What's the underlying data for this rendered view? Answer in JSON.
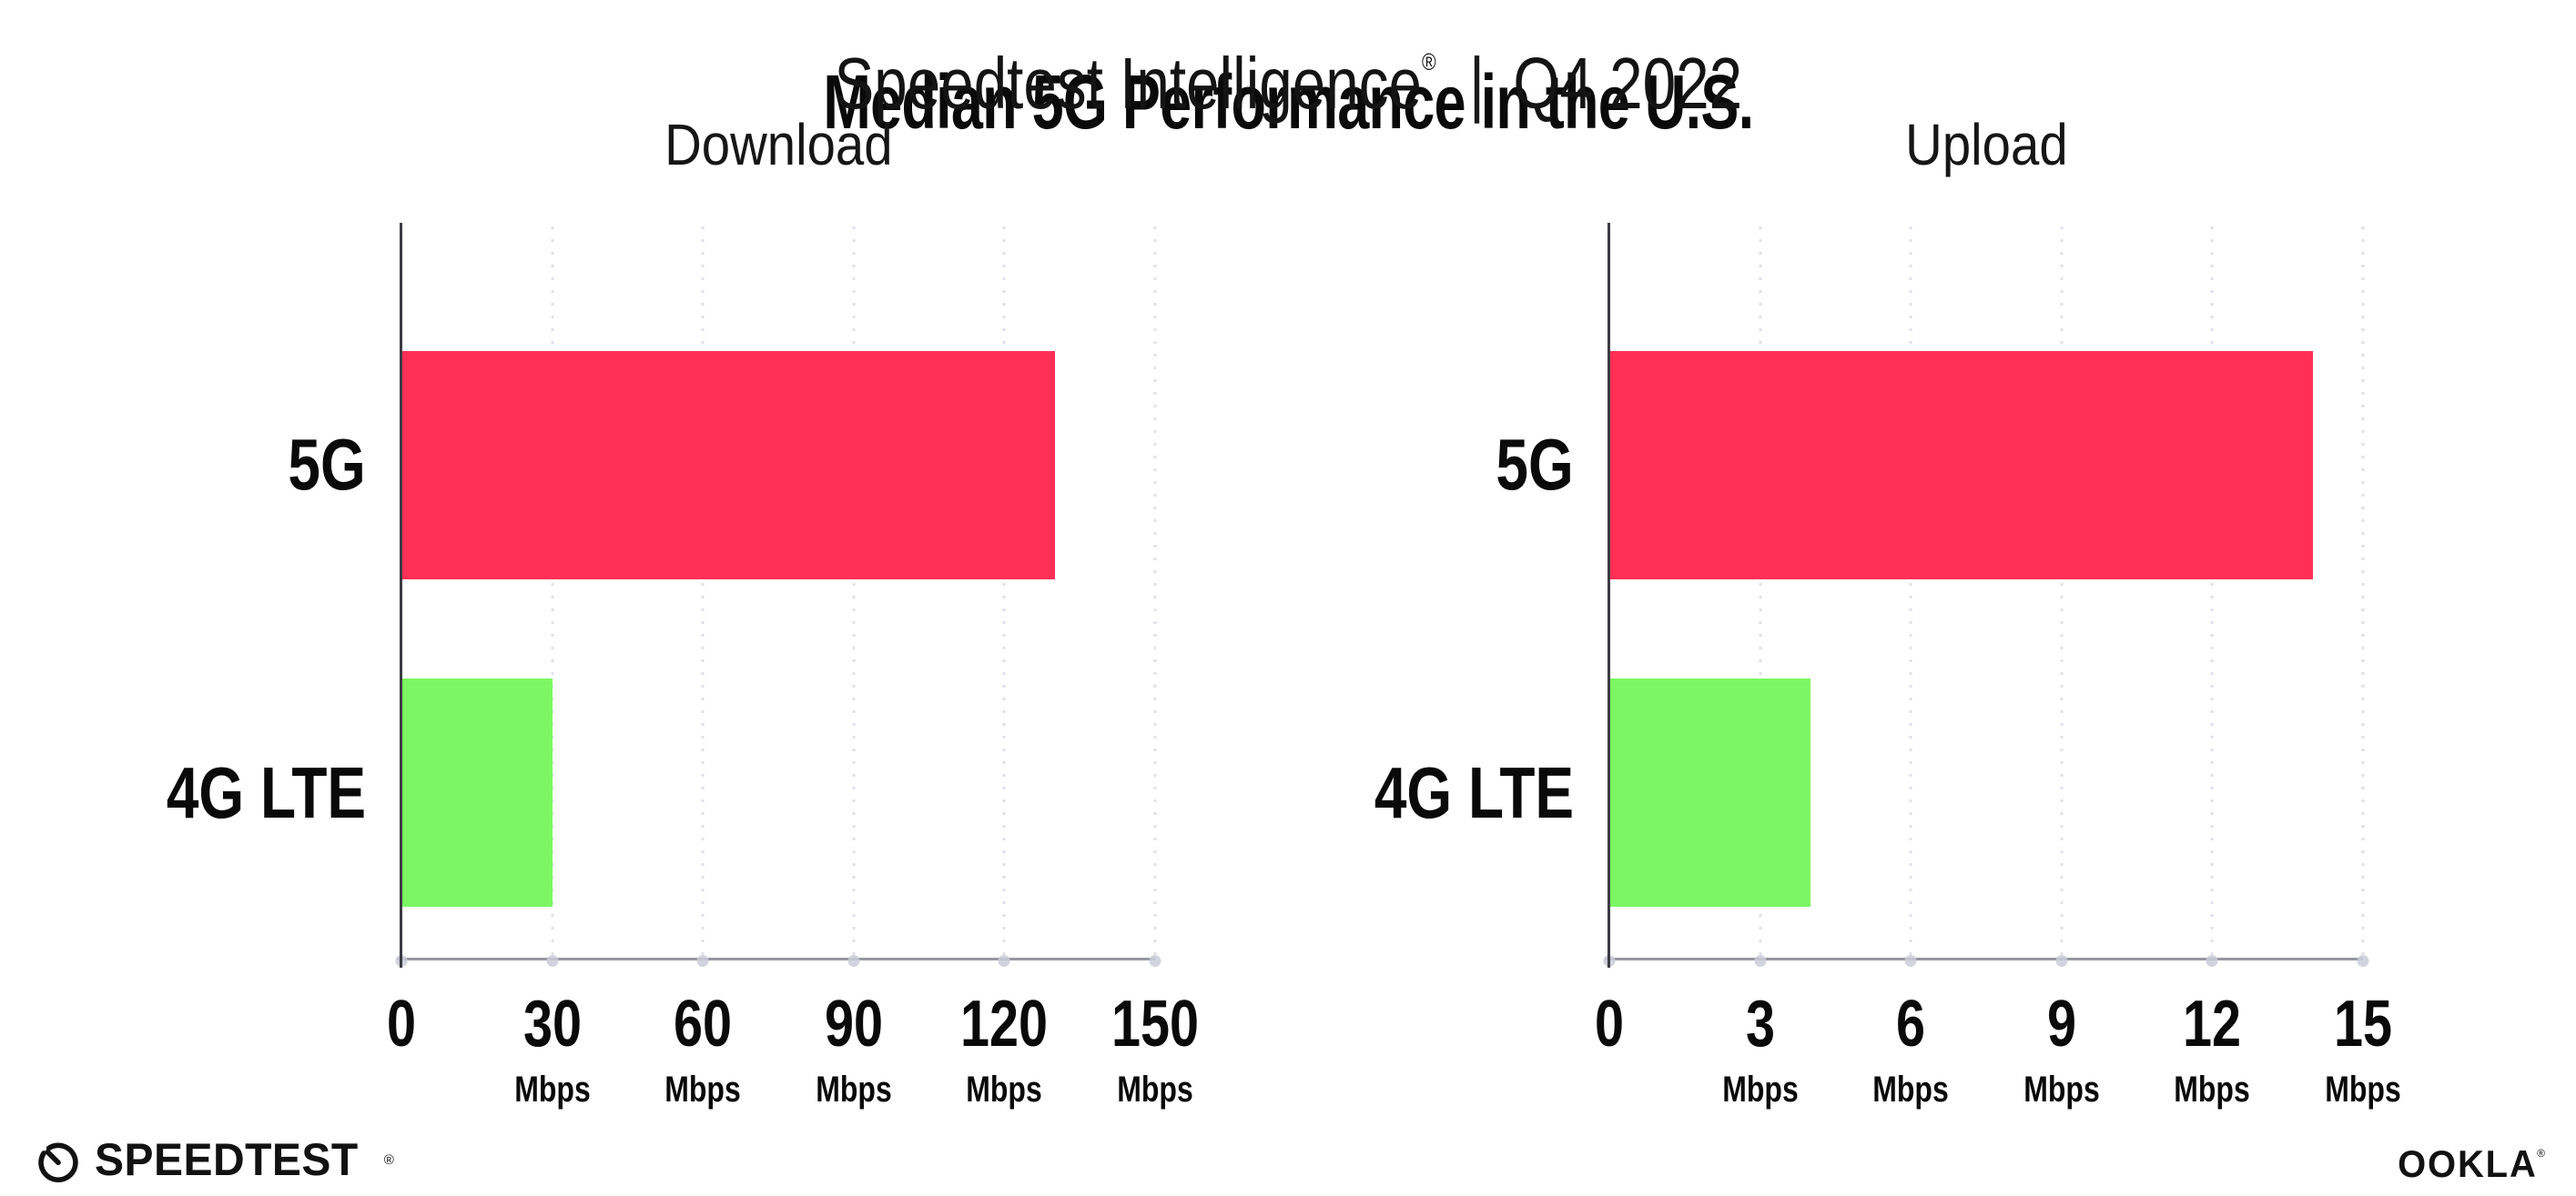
{
  "header": {
    "title": "Median 5G Performance in the U.S.",
    "subtitle_brand": "Speedtest Intelligence",
    "subtitle_reg": "®",
    "subtitle_sep": "|",
    "subtitle_period": "Q4 2022"
  },
  "chart_data": [
    {
      "type": "bar",
      "orientation": "horizontal",
      "title": "Download",
      "categories": [
        "5G",
        "4G LTE"
      ],
      "values": [
        130,
        30
      ],
      "unit": "Mbps",
      "xlim": [
        0,
        150
      ],
      "xticks": [
        0,
        30,
        60,
        90,
        120,
        150
      ],
      "bar_colors": [
        "#ff3056",
        "#7cf763"
      ],
      "grid": "dotted-vertical",
      "legend": "none"
    },
    {
      "type": "bar",
      "orientation": "horizontal",
      "title": "Upload",
      "categories": [
        "5G",
        "4G LTE"
      ],
      "values": [
        14,
        4
      ],
      "unit": "Mbps",
      "xlim": [
        0,
        15
      ],
      "xticks": [
        0,
        3,
        6,
        9,
        12,
        15
      ],
      "bar_colors": [
        "#ff3056",
        "#7cf763"
      ],
      "grid": "dotted-vertical",
      "legend": "none"
    }
  ],
  "colors": {
    "bar_5g": "#ff3056",
    "bar_4g_lte": "#7cf763",
    "y_axis_line": "#3c3c44",
    "x_axis_line": "#97979f",
    "gridline_dots": "#e0e0ea",
    "background": "#ffffff",
    "text": "#0a0a0a"
  },
  "footer": {
    "speedtest": "SPEEDTEST",
    "speedtest_reg": "®",
    "speedtest_icon": "speedtest-gauge-icon",
    "ookla": "OOKLA",
    "ookla_reg": "®"
  }
}
